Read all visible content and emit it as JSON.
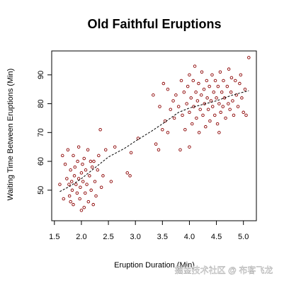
{
  "chart_data": {
    "type": "scatter",
    "title": "Old Faithful Eruptions",
    "x_label": "Eruption Duration (Min)",
    "y_label": "Waiting Time Between Eruptions (Min)",
    "watermark": "掘金技术社区 @ 布客飞龙",
    "xlim": [
      1.45,
      5.24
    ],
    "ylim": [
      39.4,
      98.3
    ],
    "xticks": [
      1.5,
      {
        "value": 2,
        "label": "2.0"
      },
      2.5,
      {
        "value": 3,
        "label": "3.0"
      },
      3.5,
      {
        "value": 4,
        "label": "4.0"
      },
      4.5,
      {
        "value": 5,
        "label": "5.0"
      }
    ],
    "yticks": [
      50,
      60,
      70,
      80,
      90
    ],
    "points": {
      "color": "#8b0000",
      "x": [
        1.6,
        1.67,
        1.7,
        1.73,
        1.75,
        1.78,
        1.8,
        1.8,
        1.82,
        1.83,
        1.85,
        1.85,
        1.87,
        1.88,
        1.9,
        1.92,
        1.93,
        1.95,
        1.97,
        1.98,
        2.0,
        2.0,
        2.02,
        2.03,
        2.05,
        2.07,
        2.08,
        2.1,
        2.12,
        2.13,
        2.15,
        2.17,
        2.18,
        2.2,
        2.22,
        2.23,
        2.25,
        2.27,
        2.3,
        2.32,
        2.35,
        2.37,
        2.4,
        2.45,
        2.55,
        2.62,
        1.65,
        1.77,
        1.95,
        2.05,
        2.85,
        2.9,
        2.92,
        3.05,
        3.33,
        3.38,
        3.43,
        3.5,
        3.45,
        3.52,
        3.55,
        3.6,
        3.65,
        3.7,
        3.72,
        3.75,
        3.8,
        3.83,
        3.85,
        3.87,
        3.9,
        3.92,
        3.95,
        3.97,
        4.0,
        4.0,
        4.03,
        4.05,
        4.07,
        4.08,
        4.1,
        4.12,
        4.13,
        4.15,
        4.17,
        4.18,
        4.2,
        4.22,
        4.23,
        4.25,
        4.27,
        4.28,
        4.3,
        4.32,
        4.33,
        4.35,
        4.37,
        4.38,
        4.4,
        4.42,
        4.43,
        4.45,
        4.47,
        4.48,
        4.5,
        4.52,
        4.53,
        4.55,
        4.57,
        4.58,
        4.6,
        4.62,
        4.63,
        4.65,
        4.67,
        4.7,
        4.72,
        4.73,
        4.75,
        4.77,
        4.78,
        4.8,
        4.82,
        4.85,
        4.87,
        4.9,
        4.93,
        4.95,
        4.97,
        5.0,
        5.03,
        5.05,
        5.1,
        3.6,
        4.0,
        4.55
      ],
      "y": [
        52,
        47,
        59,
        54,
        64,
        48,
        46,
        57,
        53,
        50,
        62,
        45,
        55,
        58,
        52,
        49,
        60,
        54,
        47,
        51,
        56,
        43,
        59,
        53,
        61,
        49,
        57,
        52,
        64,
        46,
        55,
        60,
        50,
        58,
        45,
        60,
        53,
        48,
        57,
        62,
        71,
        51,
        55,
        64,
        53,
        65,
        62,
        52,
        65,
        44,
        56,
        55,
        63,
        68,
        83,
        66,
        64,
        71,
        79,
        87,
        74,
        85,
        78,
        81,
        75,
        83,
        79,
        64,
        88,
        76,
        84,
        71,
        80,
        86,
        77,
        90,
        82,
        73,
        88,
        79,
        93,
        84,
        75,
        81,
        87,
        70,
        78,
        83,
        91,
        76,
        85,
        80,
        72,
        88,
        82,
        78,
        86,
        74,
        81,
        90,
        79,
        84,
        76,
        88,
        82,
        73,
        86,
        80,
        91,
        77,
        84,
        79,
        88,
        82,
        75,
        86,
        80,
        92,
        78,
        84,
        89,
        81,
        76,
        88,
        83,
        79,
        87,
        90,
        82,
        77,
        85,
        76,
        96,
        70,
        65,
        70
      ]
    },
    "smooth": {
      "color": "#000000",
      "style": "dashed",
      "x": [
        1.6,
        1.8,
        2.0,
        2.2,
        2.5,
        2.8,
        3.0,
        3.3,
        3.5,
        3.8,
        4.0,
        4.3,
        4.5,
        4.8,
        5.1
      ],
      "y": [
        49.5,
        51.5,
        54,
        57,
        61.5,
        64.5,
        67,
        70.5,
        73,
        77,
        78.5,
        80,
        81,
        83,
        84.5
      ]
    }
  }
}
